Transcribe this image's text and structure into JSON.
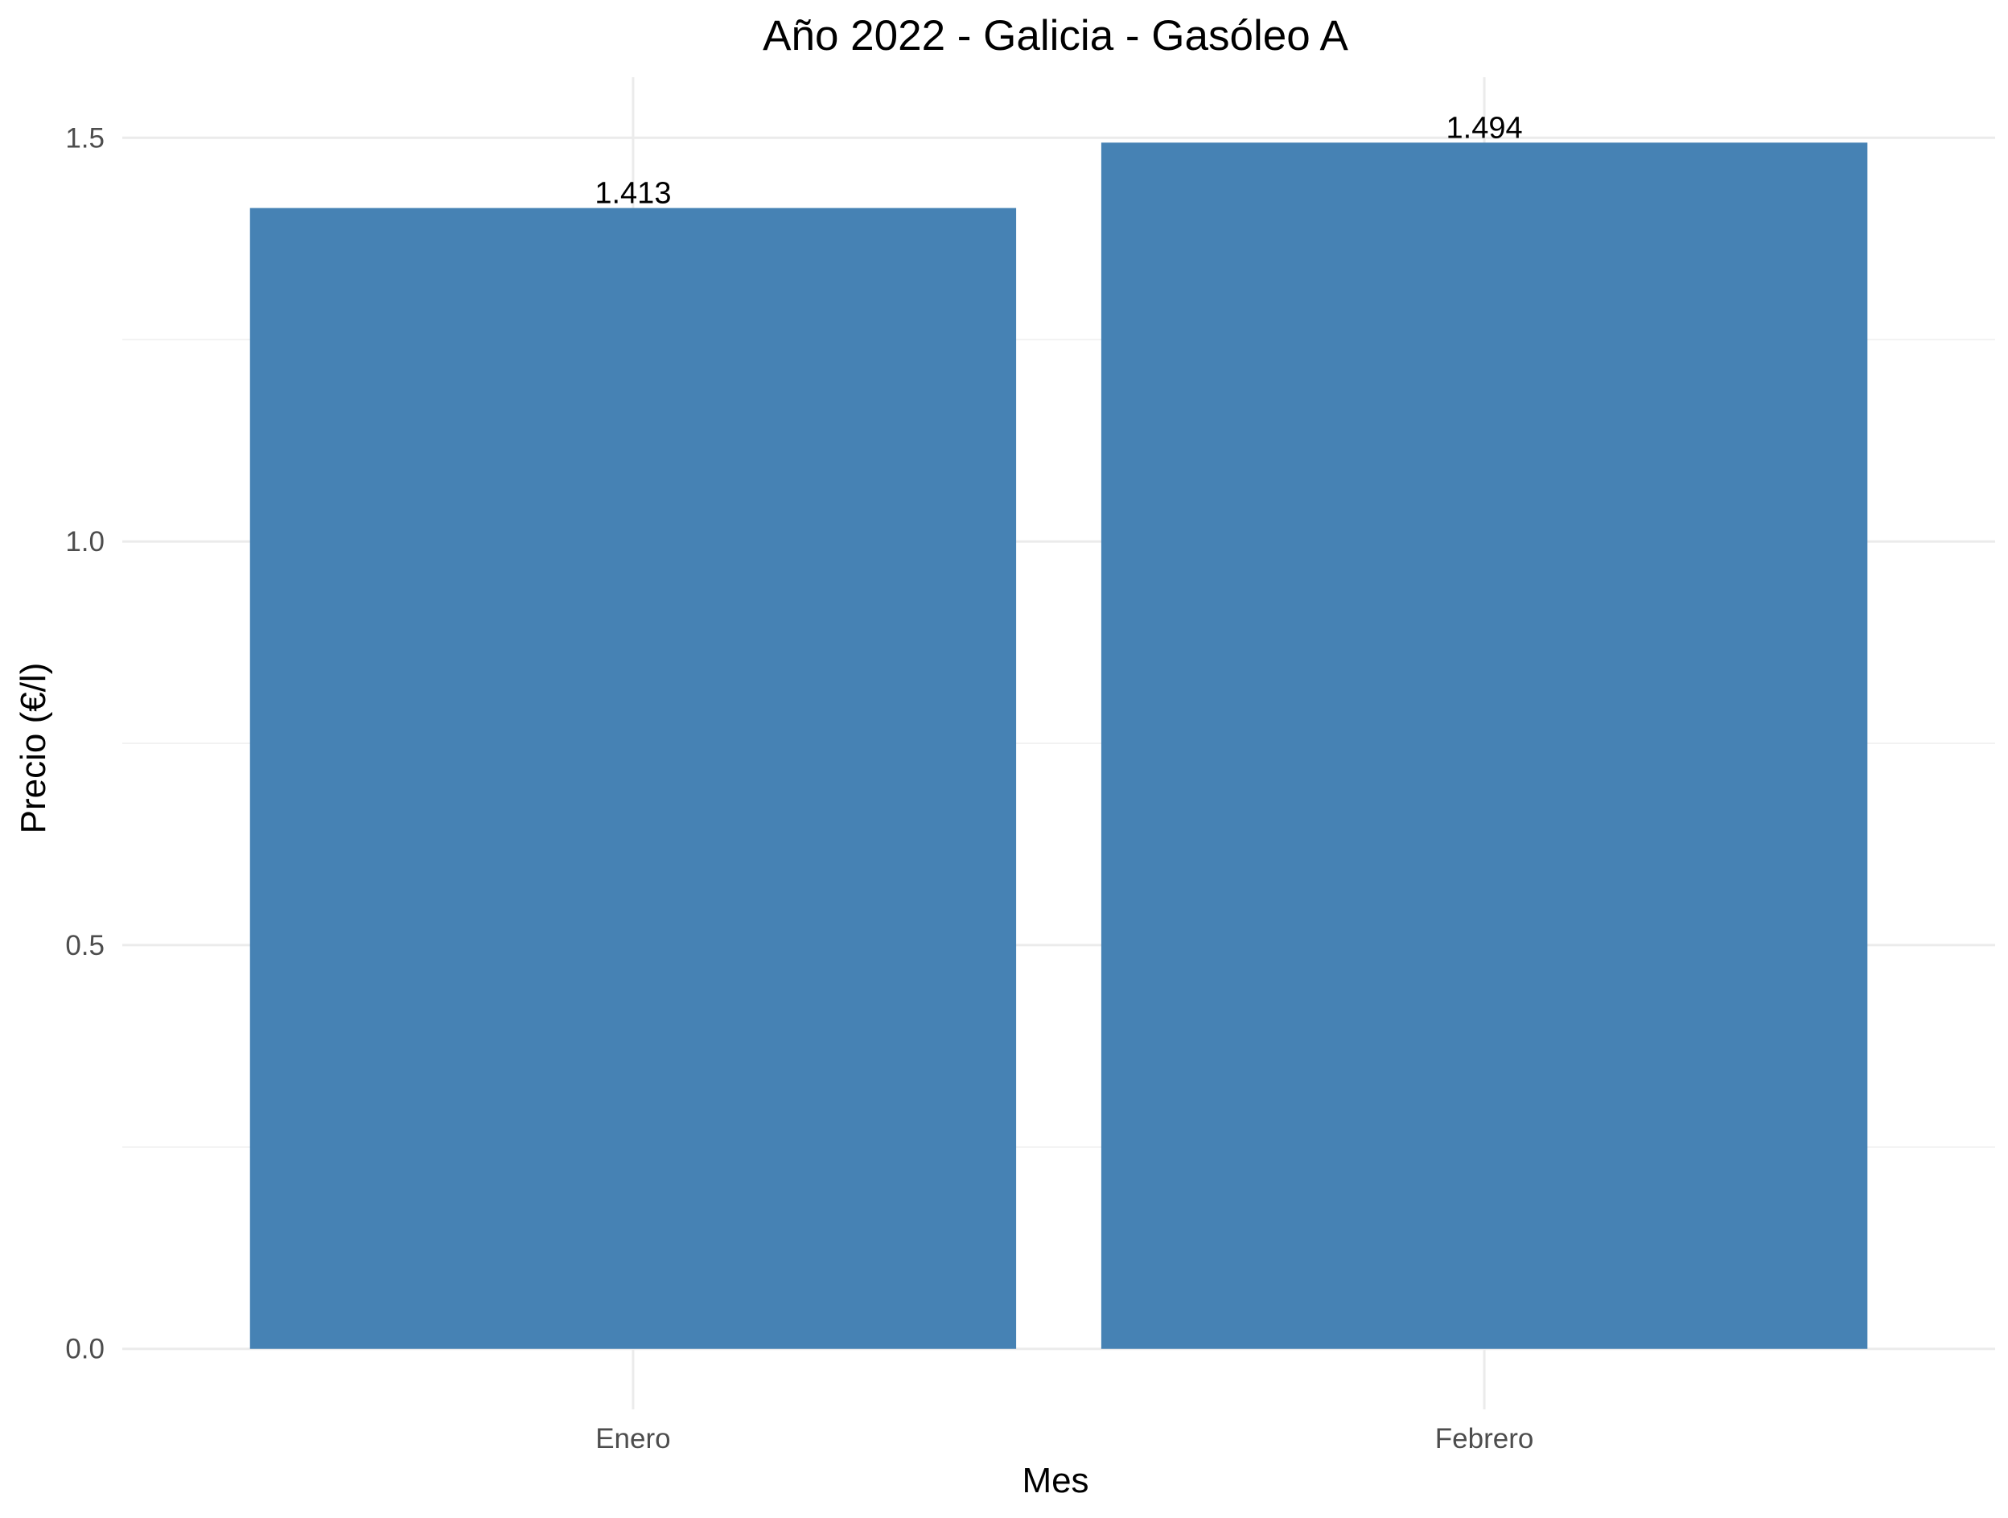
{
  "chart_data": {
    "type": "bar",
    "title": "Año 2022 - Galicia - Gasóleo A",
    "xlabel": "Mes",
    "ylabel": "Precio (€/l)",
    "categories": [
      "Enero",
      "Febrero"
    ],
    "values": [
      1.413,
      1.494
    ],
    "data_labels": [
      "1.413",
      "1.494"
    ],
    "ylim": [
      -0.075,
      1.575
    ],
    "y_ticks": [
      0.0,
      0.5,
      1.0,
      1.5
    ],
    "y_tick_labels": [
      "0.0",
      "0.5",
      "1.0",
      "1.5"
    ],
    "grid": true,
    "legend": "none",
    "bar_color": "#4682b4"
  }
}
